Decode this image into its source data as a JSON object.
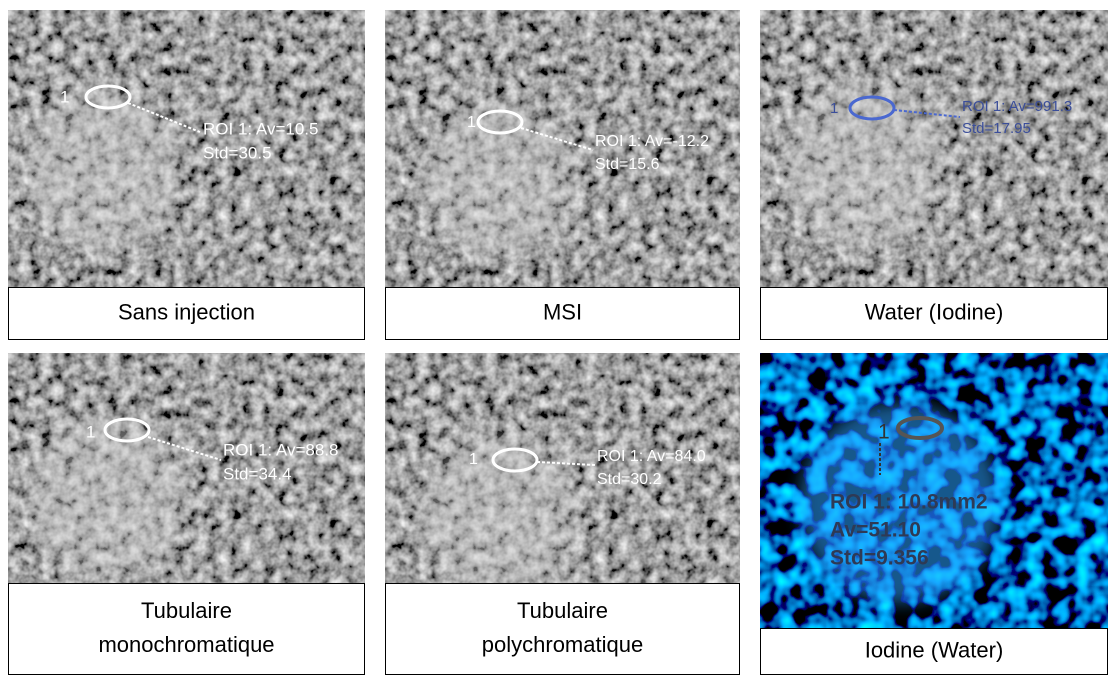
{
  "panels": [
    {
      "caption_lines": [
        "Sans injection"
      ],
      "roi_id": "1",
      "roi_lines": [
        "ROI 1: Av=10.5",
        "Std=30.5"
      ]
    },
    {
      "caption_lines": [
        "MSI"
      ],
      "roi_id": "1",
      "roi_lines": [
        "ROI 1: Av=-12.2",
        "Std=15.6"
      ]
    },
    {
      "caption_lines": [
        "Water (Iodine)"
      ],
      "roi_id": "1",
      "roi_lines": [
        "ROI 1: Av=991.3",
        "Std=17.95"
      ]
    },
    {
      "caption_lines": [
        "Tubulaire",
        "monochromatique"
      ],
      "roi_id": "1",
      "roi_lines": [
        "ROI 1: Av=88.8",
        "Std=34.4"
      ]
    },
    {
      "caption_lines": [
        "Tubulaire",
        "polychromatique"
      ],
      "roi_id": "1",
      "roi_lines": [
        "ROI 1: Av=84.0",
        "Std=30.2"
      ]
    },
    {
      "caption_lines": [
        "Iodine (Water)"
      ],
      "roi_id": "1",
      "roi_lines": [
        "ROI 1: 10.8mm2",
        "Av=51.10",
        "Std=9.356"
      ]
    }
  ]
}
